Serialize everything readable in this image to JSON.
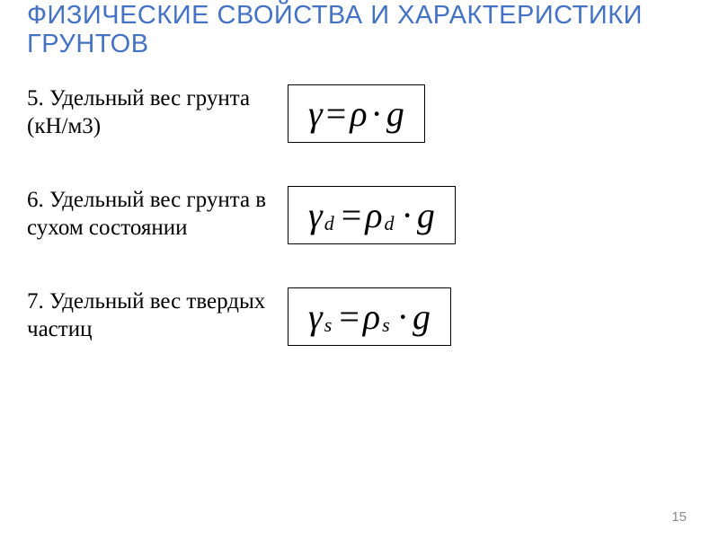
{
  "title": {
    "text": "ФИЗИЧЕСКИЕ СВОЙСТВА И ХАРАКТЕРИСТИКИ ГРУНТОВ",
    "color": "#4472c4",
    "fontsize": 29
  },
  "rows": [
    {
      "desc": "5. Удельный вес грунта (кН/м3)",
      "formula": {
        "lhs": "γ",
        "lhs_sub": "",
        "rhs": "ρ",
        "rhs_sub": "",
        "tail": "g"
      }
    },
    {
      "desc": "6. Удельный вес грунта в сухом состоянии",
      "formula": {
        "lhs": "γ",
        "lhs_sub": "d",
        "rhs": "ρ",
        "rhs_sub": "d",
        "tail": "g"
      }
    },
    {
      "desc": "7. Удельный вес твердых частиц",
      "formula": {
        "lhs": "γ",
        "lhs_sub": "s",
        "rhs": "ρ",
        "rhs_sub": "s",
        "tail": "g"
      }
    }
  ],
  "page_number": "15",
  "colors": {
    "text": "#000000",
    "border": "#000000",
    "background": "#ffffff",
    "page_num": "#8b8b8b"
  }
}
